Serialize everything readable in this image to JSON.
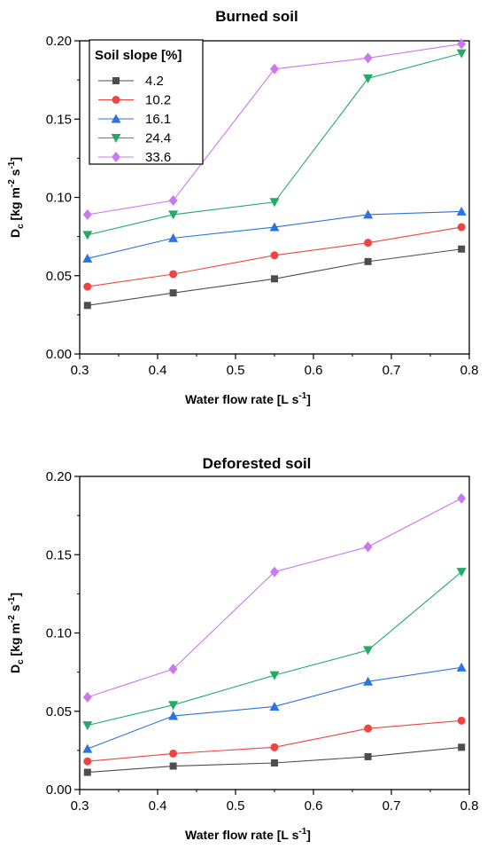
{
  "legend": {
    "title": "Soil slope [%]",
    "entries": [
      "4.2",
      "10.2",
      "16.1",
      "24.4",
      "33.6"
    ]
  },
  "styles": {
    "colors": [
      "#4d4d4d",
      "#ee4444",
      "#2a73e0",
      "#22aa66",
      "#cc77ee"
    ],
    "markers": [
      "square",
      "circle",
      "triangle-up",
      "triangle-down",
      "diamond"
    ]
  },
  "chart_data": [
    {
      "type": "line",
      "title": "Burned soil",
      "xlabel": "Water flow rate [L s-1]",
      "ylabel": "Dc [kg m-2 s-1]",
      "xlim": [
        0.3,
        0.8
      ],
      "ylim": [
        0,
        0.2
      ],
      "x": [
        0.31,
        0.42,
        0.55,
        0.67,
        0.79
      ],
      "xticks": [
        "0.3",
        "0.4",
        "0.5",
        "0.6",
        "0.7",
        "0.8"
      ],
      "yticks": [
        "0.00",
        "0.05",
        "0.10",
        "0.15",
        "0.20"
      ],
      "series": [
        {
          "name": "4.2",
          "values": [
            0.031,
            0.039,
            0.048,
            0.059,
            0.067
          ]
        },
        {
          "name": "10.2",
          "values": [
            0.043,
            0.051,
            0.063,
            0.071,
            0.081
          ]
        },
        {
          "name": "16.1",
          "values": [
            0.061,
            0.074,
            0.081,
            0.089,
            0.091
          ]
        },
        {
          "name": "24.4",
          "values": [
            0.076,
            0.089,
            0.097,
            0.176,
            0.192
          ]
        },
        {
          "name": "33.6",
          "values": [
            0.089,
            0.098,
            0.182,
            0.189,
            0.198
          ]
        }
      ]
    },
    {
      "type": "line",
      "title": "Deforested soil",
      "xlabel": "Water flow rate [L s-1]",
      "ylabel": "Dc [kg m-2 s-1]",
      "xlim": [
        0.3,
        0.8
      ],
      "ylim": [
        0,
        0.2
      ],
      "x": [
        0.31,
        0.42,
        0.55,
        0.67,
        0.79
      ],
      "xticks": [
        "0.3",
        "0.4",
        "0.5",
        "0.6",
        "0.7",
        "0.8"
      ],
      "yticks": [
        "0.00",
        "0.05",
        "0.10",
        "0.15",
        "0.20"
      ],
      "series": [
        {
          "name": "4.2",
          "values": [
            0.011,
            0.015,
            0.017,
            0.021,
            0.027
          ]
        },
        {
          "name": "10.2",
          "values": [
            0.018,
            0.023,
            0.027,
            0.039,
            0.044
          ]
        },
        {
          "name": "16.1",
          "values": [
            0.026,
            0.047,
            0.053,
            0.069,
            0.078
          ]
        },
        {
          "name": "24.4",
          "values": [
            0.041,
            0.054,
            0.073,
            0.089,
            0.139
          ]
        },
        {
          "name": "33.6",
          "values": [
            0.059,
            0.077,
            0.139,
            0.155,
            0.186
          ]
        }
      ]
    }
  ]
}
